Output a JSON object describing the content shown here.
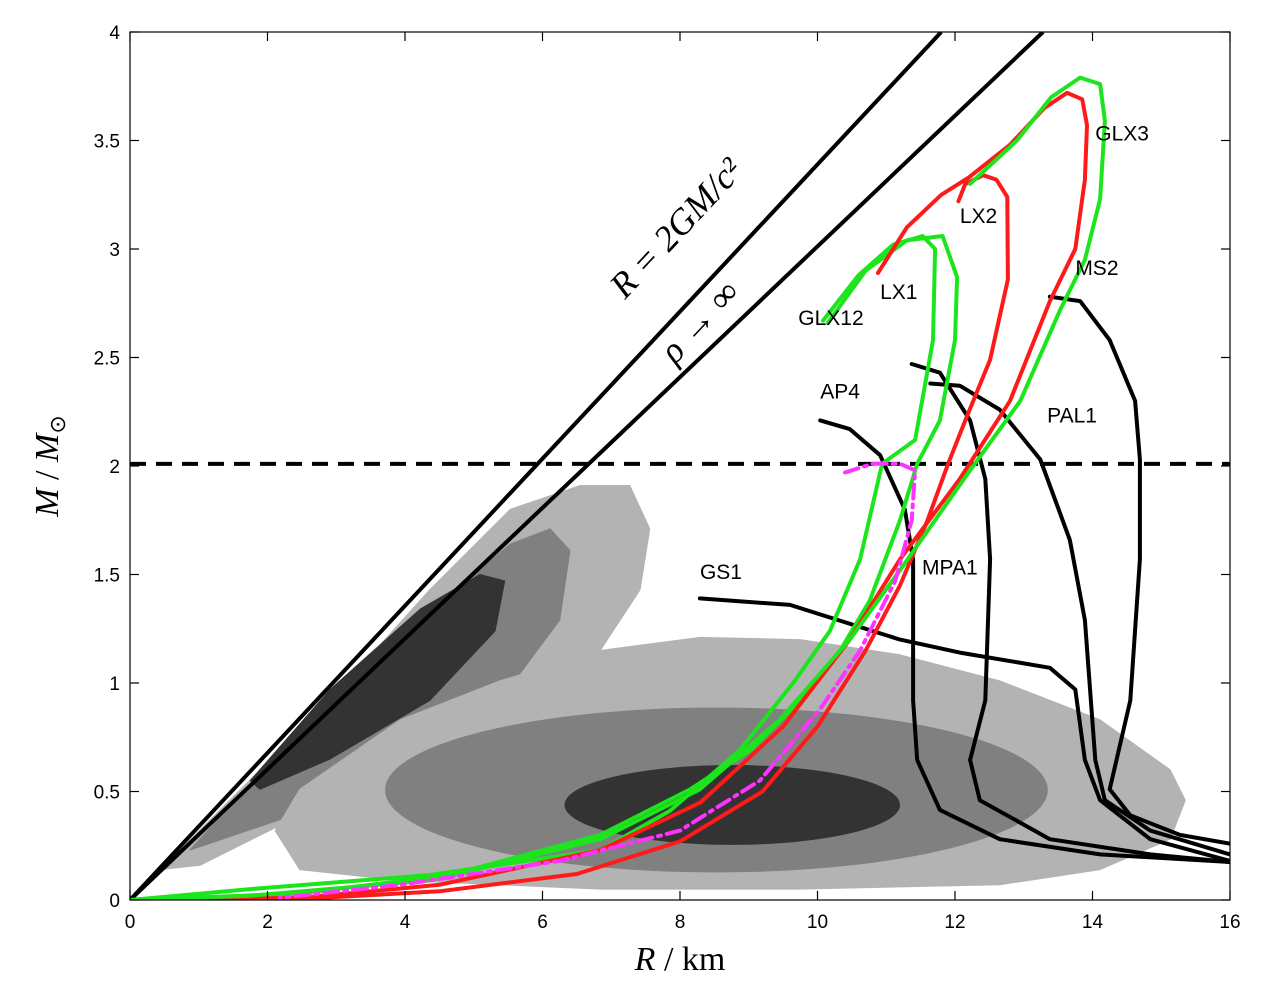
{
  "chart_data": {
    "type": "line",
    "xlabel": {
      "var": "R",
      "sep": " / ",
      "unit": "km"
    },
    "ylabel": {
      "var": "M",
      "sep": " / ",
      "unit_var": "M",
      "unit_sub": "⊙"
    },
    "xlim": [
      0,
      16
    ],
    "ylim": [
      0,
      4
    ],
    "xticks": [
      0,
      2,
      4,
      6,
      8,
      10,
      12,
      14,
      16
    ],
    "yticks": [
      0,
      0.5,
      1,
      1.5,
      2,
      2.5,
      3,
      3.5,
      4
    ],
    "ytick_labels": [
      "0",
      "0.5",
      "1",
      "1.5",
      "2",
      "2.5",
      "3",
      "3.5",
      "4"
    ],
    "grid": false,
    "colors": {
      "black": "#000000",
      "green": "#1de51d",
      "red": "#ff1a1a",
      "magenta": "#ff33ff",
      "contour_light": "#b3b3b3",
      "contour_mid": "#808080",
      "contour_dark": "#333333"
    },
    "reference_lines": [
      {
        "label": "R = 2GM/c²",
        "label_parts": [
          "R",
          " = 2",
          "GM",
          "/",
          "c",
          "2"
        ],
        "slope_R_per_M": 2.95,
        "style": "solid"
      },
      {
        "label": "ρ → ∞",
        "slope_R_per_M": 3.32,
        "style": "solid"
      },
      {
        "label": "",
        "M": 2.01,
        "style": "dashed"
      }
    ],
    "contours": [
      {
        "region": "left",
        "level": "light",
        "points": [
          [
            0.44,
            0.14
          ],
          [
            1.45,
            0.46
          ],
          [
            2.91,
            0.92
          ],
          [
            4.36,
            1.43
          ],
          [
            5.53,
            1.8
          ],
          [
            6.55,
            1.91
          ],
          [
            7.27,
            1.91
          ],
          [
            7.56,
            1.71
          ],
          [
            7.42,
            1.43
          ],
          [
            6.84,
            1.15
          ],
          [
            5.67,
            0.88
          ],
          [
            3.93,
            0.6
          ],
          [
            2.47,
            0.39
          ],
          [
            1.02,
            0.16
          ]
        ]
      },
      {
        "region": "left",
        "level": "mid",
        "points": [
          [
            0.87,
            0.23
          ],
          [
            2.47,
            0.78
          ],
          [
            4.22,
            1.29
          ],
          [
            5.53,
            1.64
          ],
          [
            6.11,
            1.71
          ],
          [
            6.4,
            1.61
          ],
          [
            6.25,
            1.29
          ],
          [
            5.38,
            0.92
          ],
          [
            3.93,
            0.65
          ],
          [
            2.18,
            0.37
          ]
        ]
      },
      {
        "region": "left",
        "level": "dark",
        "points": [
          [
            1.75,
            0.55
          ],
          [
            2.91,
            0.97
          ],
          [
            4.22,
            1.34
          ],
          [
            5.09,
            1.5
          ],
          [
            5.45,
            1.47
          ],
          [
            5.31,
            1.24
          ],
          [
            4.36,
            0.92
          ],
          [
            2.91,
            0.65
          ],
          [
            1.89,
            0.51
          ]
        ]
      },
      {
        "region": "right",
        "level": "light",
        "points": [
          [
            2.11,
            0.32
          ],
          [
            2.47,
            0.51
          ],
          [
            3.93,
            0.83
          ],
          [
            5.38,
            1.01
          ],
          [
            6.84,
            1.15
          ],
          [
            8.29,
            1.21
          ],
          [
            9.75,
            1.2
          ],
          [
            11.2,
            1.13
          ],
          [
            12.65,
            1.01
          ],
          [
            14.11,
            0.83
          ],
          [
            15.13,
            0.6
          ],
          [
            15.35,
            0.46
          ],
          [
            15.13,
            0.28
          ],
          [
            14.11,
            0.14
          ],
          [
            12.65,
            0.07
          ],
          [
            9.75,
            0.05
          ],
          [
            6.84,
            0.05
          ],
          [
            3.93,
            0.09
          ],
          [
            2.47,
            0.14
          ]
        ]
      },
      {
        "region": "right",
        "level": "mid",
        "ellipse": {
          "R": 8.53,
          "M": 0.507,
          "dR": 4.82,
          "dM": 0.38
        }
      },
      {
        "region": "right",
        "level": "dark",
        "ellipse": {
          "R": 8.76,
          "M": 0.438,
          "dR": 2.44,
          "dM": 0.184
        }
      }
    ],
    "series": [
      {
        "name": "GS1",
        "color": "black",
        "label_at": [
          8.29,
          1.48
        ],
        "points": [
          [
            8.29,
            1.39
          ],
          [
            9.6,
            1.36
          ],
          [
            11.2,
            1.2
          ],
          [
            12.07,
            1.14
          ],
          [
            13.38,
            1.07
          ],
          [
            13.75,
            0.97
          ],
          [
            13.89,
            0.645
          ],
          [
            14.11,
            0.46
          ],
          [
            14.84,
            0.28
          ],
          [
            16,
            0.18
          ]
        ]
      },
      {
        "name": "AP4",
        "color": "black",
        "label_at": [
          10.04,
          2.31
        ],
        "points": [
          [
            10.04,
            2.21
          ],
          [
            10.47,
            2.17
          ],
          [
            10.91,
            2.05
          ],
          [
            11.27,
            1.8
          ],
          [
            11.39,
            1.57
          ],
          [
            11.39,
            0.92
          ],
          [
            11.45,
            0.645
          ],
          [
            11.78,
            0.415
          ],
          [
            12.65,
            0.28
          ],
          [
            14.11,
            0.21
          ],
          [
            16,
            0.175
          ]
        ]
      },
      {
        "name": "MPA1",
        "color": "black",
        "label_at": [
          11.52,
          1.5
        ],
        "points": [
          [
            11.37,
            2.47
          ],
          [
            11.78,
            2.43
          ],
          [
            12.22,
            2.21
          ],
          [
            12.44,
            1.94
          ],
          [
            12.51,
            1.57
          ],
          [
            12.44,
            0.92
          ],
          [
            12.22,
            0.645
          ],
          [
            12.36,
            0.46
          ],
          [
            13.38,
            0.28
          ],
          [
            14.84,
            0.21
          ],
          [
            16,
            0.175
          ]
        ]
      },
      {
        "name": "PAL1",
        "color": "black",
        "label_at": [
          13.34,
          2.2
        ],
        "points": [
          [
            11.64,
            2.38
          ],
          [
            12.07,
            2.37
          ],
          [
            12.65,
            2.26
          ],
          [
            13.24,
            2.03
          ],
          [
            13.67,
            1.66
          ],
          [
            13.89,
            1.29
          ],
          [
            14.04,
            0.645
          ],
          [
            14.18,
            0.46
          ],
          [
            14.84,
            0.32
          ],
          [
            16,
            0.21
          ]
        ]
      },
      {
        "name": "MS2",
        "color": "black",
        "label_at": [
          13.75,
          2.88
        ],
        "points": [
          [
            13.38,
            2.78
          ],
          [
            13.82,
            2.76
          ],
          [
            14.25,
            2.58
          ],
          [
            14.62,
            2.3
          ],
          [
            14.69,
            2.03
          ],
          [
            14.69,
            1.57
          ],
          [
            14.55,
            0.92
          ],
          [
            14.25,
            0.51
          ],
          [
            14.55,
            0.39
          ],
          [
            15.27,
            0.3
          ],
          [
            16,
            0.26
          ]
        ]
      },
      {
        "name": "GLX12",
        "color": "green",
        "label_at": [
          9.72,
          2.65
        ],
        "points": [
          [
            10.08,
            2.67
          ],
          [
            10.6,
            2.88
          ],
          [
            11.1,
            3.02
          ],
          [
            11.53,
            3.06
          ],
          [
            11.71,
            3.0
          ],
          [
            11.68,
            2.58
          ],
          [
            11.42,
            2.12
          ],
          [
            10.94,
            2.01
          ],
          [
            10.62,
            1.57
          ],
          [
            10.18,
            1.24
          ],
          [
            9.67,
            1.01
          ],
          [
            8.87,
            0.69
          ],
          [
            7.85,
            0.41
          ],
          [
            6.84,
            0.23
          ],
          [
            4.36,
            0.115
          ],
          [
            1.75,
            0.05
          ],
          [
            0,
            0
          ]
        ]
      },
      {
        "name": "",
        "color": "green",
        "points": [
          [
            10.15,
            2.66
          ],
          [
            10.7,
            2.9
          ],
          [
            11.3,
            3.04
          ],
          [
            11.82,
            3.06
          ],
          [
            12.03,
            2.87
          ],
          [
            12.0,
            2.58
          ],
          [
            11.78,
            2.21
          ],
          [
            11.45,
            2.01
          ],
          [
            11.2,
            1.75
          ],
          [
            10.76,
            1.38
          ],
          [
            10.33,
            1.15
          ],
          [
            9.75,
            0.92
          ],
          [
            9.02,
            0.69
          ],
          [
            8.15,
            0.51
          ],
          [
            6.84,
            0.3
          ],
          [
            4.65,
            0.115
          ],
          [
            2.47,
            0.03
          ],
          [
            0,
            0
          ]
        ]
      },
      {
        "name": "LX1",
        "color": "red",
        "label_at": [
          10.91,
          2.77
        ],
        "points": [
          [
            10.88,
            2.89
          ],
          [
            11.3,
            3.1
          ],
          [
            11.8,
            3.25
          ],
          [
            12.2,
            3.33
          ],
          [
            12.8,
            3.48
          ],
          [
            13.3,
            3.65
          ],
          [
            13.63,
            3.72
          ],
          [
            13.85,
            3.69
          ],
          [
            13.92,
            3.57
          ],
          [
            13.89,
            3.32
          ],
          [
            13.75,
            3.0
          ],
          [
            13.38,
            2.76
          ],
          [
            12.8,
            2.3
          ],
          [
            12.07,
            1.94
          ],
          [
            11.2,
            1.57
          ],
          [
            10.47,
            1.2
          ],
          [
            9.5,
            0.8
          ],
          [
            8.3,
            0.45
          ],
          [
            6.84,
            0.23
          ],
          [
            4.5,
            0.07
          ],
          [
            2.5,
            0.01
          ],
          [
            0,
            0
          ]
        ]
      },
      {
        "name": "LX2",
        "color": "red",
        "label_at": [
          12.07,
          3.12
        ],
        "points": [
          [
            12.05,
            3.22
          ],
          [
            12.15,
            3.3
          ],
          [
            12.41,
            3.34
          ],
          [
            12.6,
            3.32
          ],
          [
            12.76,
            3.24
          ],
          [
            12.77,
            2.86
          ],
          [
            12.51,
            2.49
          ],
          [
            12.15,
            2.21
          ],
          [
            11.9,
            2.01
          ],
          [
            11.6,
            1.75
          ],
          [
            11.2,
            1.45
          ],
          [
            10.7,
            1.15
          ],
          [
            10.0,
            0.8
          ],
          [
            9.2,
            0.5
          ],
          [
            8.0,
            0.27
          ],
          [
            6.5,
            0.12
          ],
          [
            4.5,
            0.04
          ],
          [
            2.5,
            0.005
          ],
          [
            0,
            0
          ]
        ]
      },
      {
        "name": "GLX3",
        "color": "green",
        "label_at": [
          14.04,
          3.5
        ],
        "points": [
          [
            12.22,
            3.3
          ],
          [
            12.9,
            3.5
          ],
          [
            13.4,
            3.7
          ],
          [
            13.82,
            3.79
          ],
          [
            14.11,
            3.76
          ],
          [
            14.18,
            3.59
          ],
          [
            14.11,
            3.23
          ],
          [
            13.89,
            2.95
          ],
          [
            13.53,
            2.72
          ],
          [
            12.95,
            2.3
          ],
          [
            12.22,
            1.98
          ],
          [
            11.2,
            1.52
          ],
          [
            10.47,
            1.2
          ],
          [
            9.45,
            0.83
          ],
          [
            8.29,
            0.51
          ],
          [
            6.84,
            0.28
          ],
          [
            4.36,
            0.09
          ],
          [
            1.75,
            0.02
          ],
          [
            0,
            0
          ]
        ]
      },
      {
        "name": "",
        "color": "magenta",
        "style": "dashdot",
        "points": [
          [
            10.4,
            1.97
          ],
          [
            10.8,
            2.01
          ],
          [
            11.2,
            2.01
          ],
          [
            11.42,
            1.98
          ],
          [
            11.37,
            1.75
          ],
          [
            11.13,
            1.47
          ],
          [
            10.62,
            1.15
          ],
          [
            10.04,
            0.88
          ],
          [
            9.16,
            0.55
          ],
          [
            8.0,
            0.32
          ],
          [
            6.25,
            0.18
          ],
          [
            3.93,
            0.07
          ],
          [
            2.18,
            0.01
          ]
        ]
      }
    ]
  }
}
